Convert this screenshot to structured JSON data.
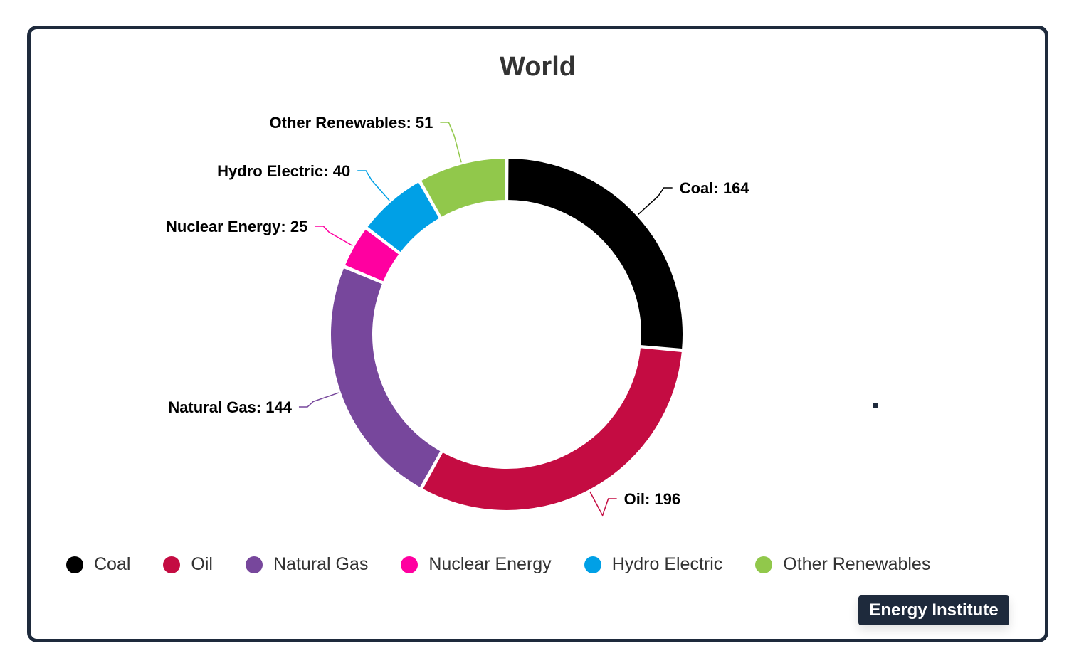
{
  "chart_data": {
    "type": "pie",
    "title": "World",
    "categories": [
      "Coal",
      "Oil",
      "Natural Gas",
      "Nuclear Energy",
      "Hydro Electric",
      "Other Renewables"
    ],
    "values": [
      164,
      196,
      144,
      25,
      40,
      51
    ],
    "colors": [
      "#000000",
      "#c40c42",
      "#77479c",
      "#ff00a0",
      "#00a0e6",
      "#91c84b"
    ],
    "data_labels": [
      "Coal: 164",
      "Oil: 196",
      "Natural Gas: 144",
      "Nuclear Energy: 25",
      "Hydro Electric: 40",
      "Other Renewables: 51"
    ],
    "legend_position": "bottom-left",
    "donut": true
  },
  "source_badge": "Energy Institute"
}
